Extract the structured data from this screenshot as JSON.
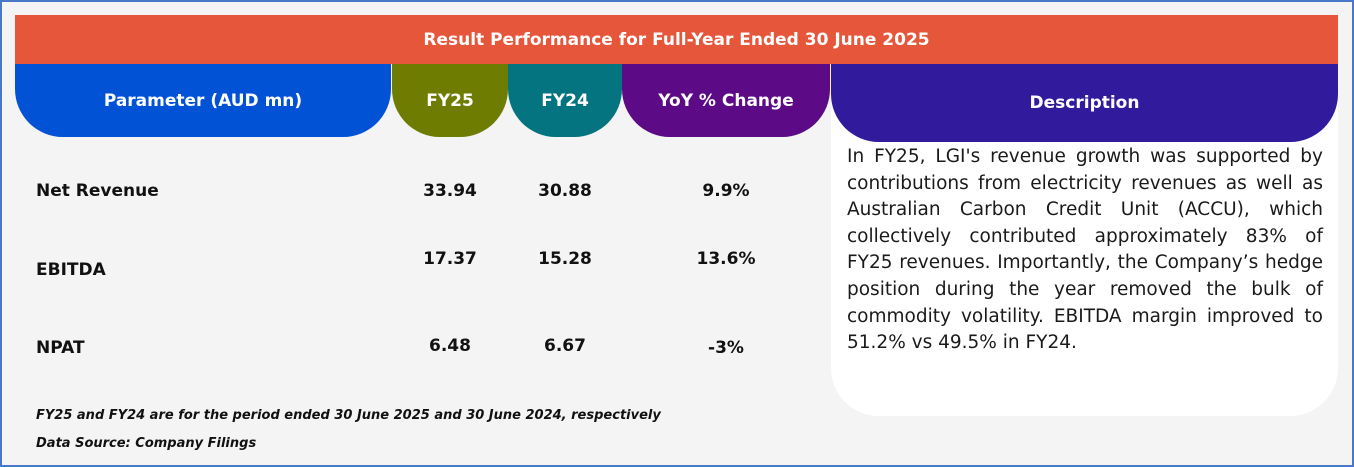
{
  "title": "Result Performance for Full-Year Ended 30 June 2025",
  "headers": {
    "parameter": "Parameter (AUD mn)",
    "fy25": "FY25",
    "fy24": "FY24",
    "yoy": "YoY % Change",
    "description": "Description"
  },
  "rows": [
    {
      "label": "Net Revenue",
      "fy25": "33.94",
      "fy24": "30.88",
      "yoy": "9.9%"
    },
    {
      "label": "EBITDA",
      "fy25": "17.37",
      "fy24": "15.28",
      "yoy": "13.6%"
    },
    {
      "label": "NPAT",
      "fy25": "6.48",
      "fy24": "6.67",
      "yoy": "-3%"
    }
  ],
  "description": "In FY25, LGI's revenue growth was supported by contributions from electricity revenues as well as Australian Carbon Credit Unit (ACCU), which collectively contributed approximately 83% of FY25 revenues. Importantly, the Company’s hedge position during the year removed the bulk of commodity volatility. EBITDA margin improved to 51.2% vs 49.5% in FY24.",
  "footnotes": {
    "period": "FY25 and FY24 are for the period ended 30 June 2025 and 30 June 2024, respectively",
    "source": "Data Source: Company Filings"
  },
  "colors": {
    "banner": "#e5563a",
    "parameter": "#0252d6",
    "fy25": "#6e7d02",
    "fy24": "#037480",
    "yoy": "#5c0a86",
    "description": "#311b9c"
  }
}
